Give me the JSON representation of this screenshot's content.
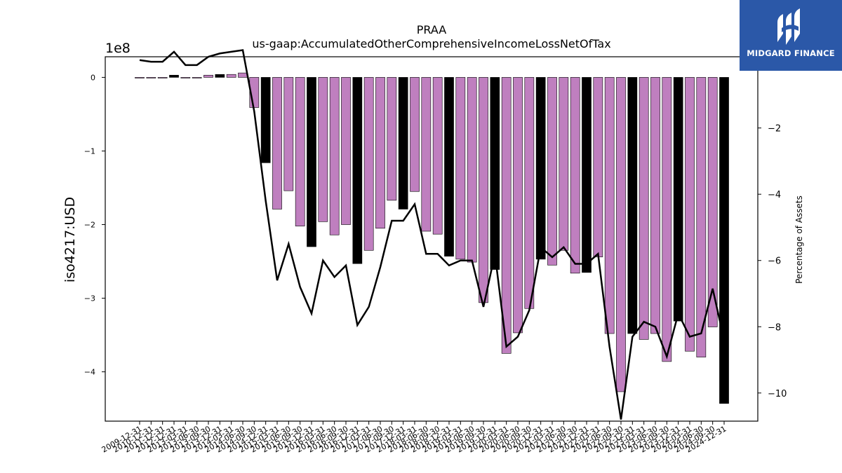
{
  "chart_data": {
    "type": "bar",
    "title": "PRAA",
    "subtitle": "us-gaap:AccumulatedOtherComprehensiveIncomeLossNetOfTax",
    "ylabel": "iso4217:USD",
    "y_scale_label": "1e8",
    "y2label": "Percentage of Assets",
    "ylim": [
      -4.67,
      0.28
    ],
    "y2lim": [
      -10.85,
      0.15
    ],
    "yticks": [
      0,
      -1,
      -2,
      -3,
      -4
    ],
    "y2ticks": [
      0,
      -2,
      -4,
      -6,
      -8,
      -10
    ],
    "grid": false,
    "categories": [
      "2009-12-31",
      "2010-06-30",
      "2010-12-31",
      "2011-06-30",
      "2011-12-31",
      "2012-06-30",
      "2012-12-31",
      "2013-06-30",
      "2013-12-31",
      "2014-06-30",
      "2014-09-30",
      "2014-12-31",
      "2015-03-31",
      "2015-06-30",
      "2015-09-30",
      "2015-12-31",
      "2016-03-31",
      "2016-06-30",
      "2016-09-30",
      "2016-12-31",
      "2017-03-31",
      "2017-06-30",
      "2017-09-30",
      "2017-12-31",
      "2018-03-31",
      "2018-06-30",
      "2018-09-30",
      "2018-12-31",
      "2019-03-31",
      "2019-06-30",
      "2019-09-30",
      "2019-12-31",
      "2020-03-31",
      "2020-06-30",
      "2020-09-30",
      "2020-12-31",
      "2021-03-31",
      "2021-06-30",
      "2021-09-30",
      "2021-12-31",
      "2022-03-31",
      "2022-06-30",
      "2022-09-30",
      "2022-12-31",
      "2023-03-31",
      "2023-06-30",
      "2023-09-30",
      "2023-12-31",
      "2024-03-31",
      "2024-06-30",
      "2024-09-30",
      "2024-12-31"
    ],
    "xtick_labels": [
      "2009-12-31",
      "2010-12-31",
      "2011-12-31",
      "2012-12-31",
      "2013-03-31",
      "2013-06-30",
      "2013-09-30",
      "2013-12-31",
      "2014-03-31",
      "2014-06-30",
      "2014-09-30",
      "2014-12-31",
      "2015-03-31",
      "2015-06-30",
      "2015-09-30",
      "2015-12-31",
      "2016-03-31",
      "2016-06-30",
      "2016-09-30",
      "2016-12-31",
      "2017-03-31",
      "2017-06-30",
      "2017-09-30",
      "2017-12-31",
      "2018-03-31",
      "2018-06-30",
      "2018-09-30",
      "2018-12-31",
      "2019-03-31",
      "2019-06-30",
      "2019-09-30",
      "2019-12-31",
      "2020-03-31",
      "2020-06-30",
      "2020-09-30",
      "2020-12-31",
      "2021-03-31",
      "2021-06-30",
      "2021-09-30",
      "2021-12-31",
      "2022-03-31",
      "2022-06-30",
      "2022-09-30",
      "2022-12-31",
      "2023-03-31",
      "2023-06-30",
      "2023-09-30",
      "2023-12-31",
      "2024-03-31",
      "2024-06-30",
      "2024-09-30",
      "2024-12-31"
    ],
    "highlight_color": "#000000",
    "bar_color": "#bf7fbf",
    "line_color": "#000000",
    "series": [
      {
        "axis": "left",
        "kind": "bar",
        "values": [
          -0.01,
          -0.01,
          -0.01,
          0.03,
          -0.01,
          -0.01,
          0.03,
          0.04,
          0.04,
          0.06,
          -0.41,
          -1.16,
          -1.79,
          -1.54,
          -2.02,
          -2.3,
          -1.96,
          -2.14,
          -2.0,
          -2.53,
          -2.35,
          -2.05,
          -1.67,
          -1.79,
          -1.55,
          -2.09,
          -2.13,
          -2.43,
          -2.47,
          -2.51,
          -3.06,
          -2.61,
          -3.75,
          -3.47,
          -3.14,
          -2.47,
          -2.55,
          -2.35,
          -2.66,
          -2.65,
          -2.44,
          -3.48,
          -4.27,
          -3.48,
          -3.56,
          -3.48,
          -3.86,
          -3.31,
          -3.72,
          -3.8,
          -3.39,
          -4.43
        ],
        "highlight": [
          false,
          false,
          false,
          true,
          false,
          false,
          false,
          true,
          false,
          false,
          false,
          true,
          false,
          false,
          false,
          true,
          false,
          false,
          false,
          true,
          false,
          false,
          false,
          true,
          false,
          false,
          false,
          true,
          false,
          false,
          false,
          true,
          false,
          false,
          false,
          true,
          false,
          false,
          false,
          true,
          false,
          false,
          false,
          true,
          false,
          false,
          false,
          true,
          false,
          false,
          false,
          true
        ]
      },
      {
        "axis": "right",
        "kind": "line",
        "values": [
          0.05,
          0.0,
          0.0,
          0.3,
          -0.1,
          -0.1,
          0.15,
          0.25,
          0.3,
          0.35,
          -1.5,
          -4.2,
          -6.6,
          -5.5,
          -6.8,
          -7.6,
          -6.0,
          -6.5,
          -6.15,
          -7.95,
          -7.4,
          -6.2,
          -4.8,
          -4.8,
          -4.3,
          -5.8,
          -5.8,
          -6.15,
          -6.0,
          -6.0,
          -7.4,
          -5.8,
          -8.6,
          -8.3,
          -7.5,
          -5.6,
          -5.9,
          -5.6,
          -6.1,
          -6.1,
          -5.8,
          -8.6,
          -10.8,
          -8.3,
          -7.85,
          -8.0,
          -8.9,
          -7.6,
          -8.3,
          -8.2,
          -6.85,
          -8.4
        ]
      }
    ]
  },
  "logo": {
    "text": "MIDGARD FINANCE",
    "icon": "midgard-logo-icon"
  }
}
